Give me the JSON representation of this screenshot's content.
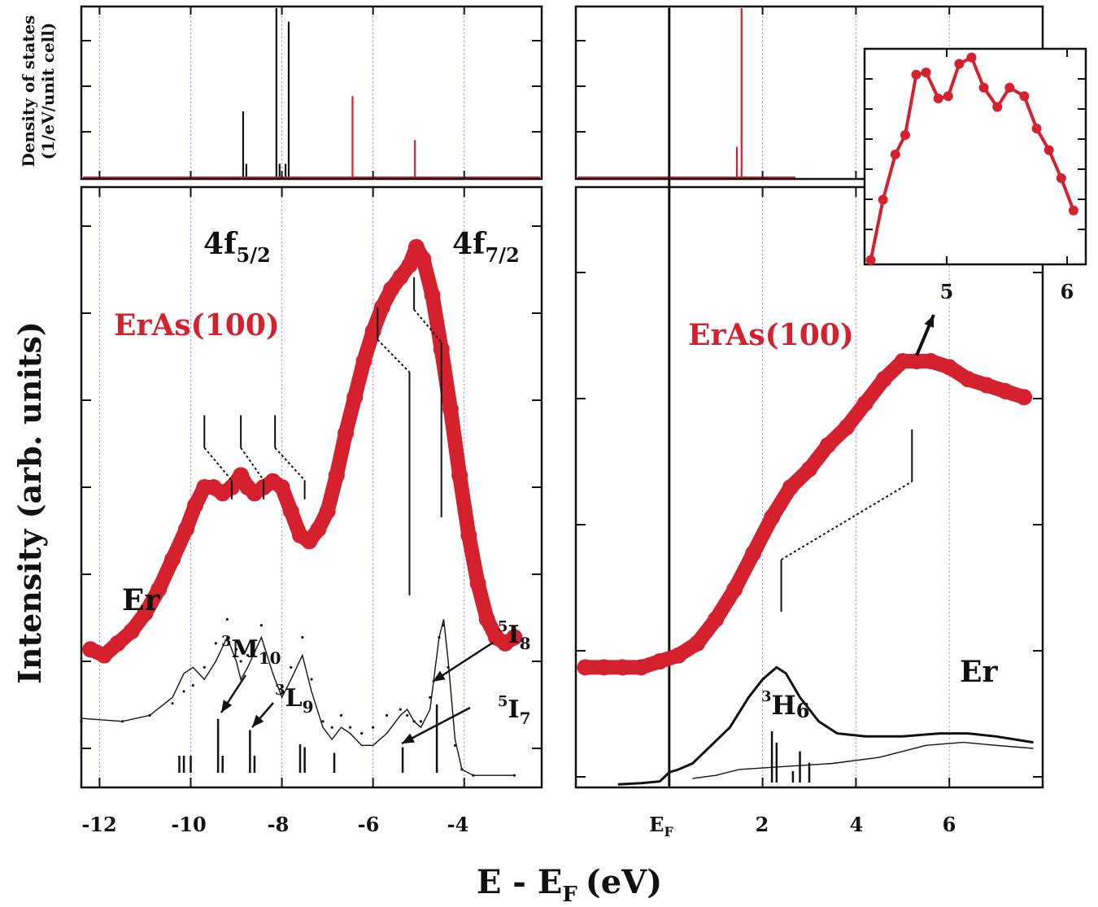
{
  "figure": {
    "x_axis_title_main": "E - E",
    "x_axis_title_sub": "F",
    "x_axis_title_unit": "(eV)",
    "y_axis_title_main": "Intensity (arb. units)",
    "y_axis_title_dos_line1": "Density of states",
    "y_axis_title_dos_line2": "(1/eV/unit cell)"
  },
  "colors": {
    "red": "#d5202e",
    "black": "#111111",
    "grid": "#8a8af0"
  },
  "left_panel": {
    "x_ticks": [
      "-12",
      "-10",
      "-8",
      "-6",
      "-4"
    ],
    "label_4f52_main": "4f",
    "label_4f52_sub": "5/2",
    "label_4f72_main": "4f",
    "label_4f72_sub": "7/2",
    "label_sample": "ErAs(100)",
    "label_er": "Er",
    "label_3M10_sup": "3",
    "label_3M10_main": "M",
    "label_3M10_sub": "10",
    "label_3L9_sup": "3",
    "label_3L9_main": "L",
    "label_3L9_sub": "9",
    "label_5I8_sup": "5",
    "label_5I8_main": "I",
    "label_5I8_sub": "8",
    "label_5I7_sup": "5",
    "label_5I7_main": "I",
    "label_5I7_sub": "7"
  },
  "right_panel": {
    "x_tick_ef_main": "E",
    "x_tick_ef_sub": "F",
    "x_ticks": [
      "2",
      "4",
      "6"
    ],
    "label_sample": "ErAs(100)",
    "label_er": "Er",
    "label_3H6_sup": "3",
    "label_3H6_main": "H",
    "label_3H6_sub": "6"
  },
  "inset": {
    "x_ticks": [
      "5",
      "6"
    ]
  },
  "chart_data": [
    {
      "type": "line",
      "panel": "left-dos",
      "xlim": [
        -12.4,
        -2.3
      ],
      "series": [
        {
          "color": "black",
          "spikes": [
            {
              "x": -8.85,
              "h": 0.39
            },
            {
              "x": -8.78,
              "h": 0.08
            },
            {
              "x": -8.12,
              "h": 1.0
            },
            {
              "x": -8.05,
              "h": 0.08
            },
            {
              "x": -7.92,
              "h": 0.08
            },
            {
              "x": -7.85,
              "h": 0.92
            }
          ]
        },
        {
          "color": "red",
          "spikes": [
            {
              "x": -6.45,
              "h": 0.48
            },
            {
              "x": -5.08,
              "h": 0.22
            }
          ]
        }
      ]
    },
    {
      "type": "line",
      "panel": "left-main",
      "xlim": [
        -12.4,
        -2.3
      ],
      "series": [
        {
          "color": "red",
          "style": "markers",
          "points": [
            [
              -12.2,
              0.23
            ],
            [
              -11.9,
              0.22
            ],
            [
              -11.6,
              0.24
            ],
            [
              -11.3,
              0.26
            ],
            [
              -11.0,
              0.29
            ],
            [
              -10.7,
              0.33
            ],
            [
              -10.4,
              0.38
            ],
            [
              -10.1,
              0.43
            ],
            [
              -9.9,
              0.47
            ],
            [
              -9.7,
              0.5
            ],
            [
              -9.5,
              0.5
            ],
            [
              -9.3,
              0.49
            ],
            [
              -9.1,
              0.5
            ],
            [
              -8.9,
              0.52
            ],
            [
              -8.75,
              0.5
            ],
            [
              -8.6,
              0.49
            ],
            [
              -8.4,
              0.5
            ],
            [
              -8.2,
              0.51
            ],
            [
              -8.0,
              0.5
            ],
            [
              -7.8,
              0.46
            ],
            [
              -7.6,
              0.42
            ],
            [
              -7.4,
              0.41
            ],
            [
              -7.2,
              0.43
            ],
            [
              -7.0,
              0.46
            ],
            [
              -6.8,
              0.52
            ],
            [
              -6.6,
              0.59
            ],
            [
              -6.4,
              0.65
            ],
            [
              -6.2,
              0.71
            ],
            [
              -6.0,
              0.76
            ],
            [
              -5.8,
              0.8
            ],
            [
              -5.6,
              0.83
            ],
            [
              -5.4,
              0.85
            ],
            [
              -5.2,
              0.87
            ],
            [
              -5.05,
              0.9
            ],
            [
              -4.9,
              0.88
            ],
            [
              -4.7,
              0.82
            ],
            [
              -4.5,
              0.73
            ],
            [
              -4.3,
              0.63
            ],
            [
              -4.1,
              0.52
            ],
            [
              -3.9,
              0.42
            ],
            [
              -3.7,
              0.34
            ],
            [
              -3.5,
              0.28
            ],
            [
              -3.3,
              0.25
            ],
            [
              -3.1,
              0.24
            ],
            [
              -2.9,
              0.25
            ]
          ]
        },
        {
          "color": "black",
          "style": "thin-line",
          "points": [
            [
              -12.4,
              0.115
            ],
            [
              -11.5,
              0.11
            ],
            [
              -10.9,
              0.12
            ],
            [
              -10.4,
              0.15
            ],
            [
              -10.15,
              0.19
            ],
            [
              -9.95,
              0.2
            ],
            [
              -9.7,
              0.18
            ],
            [
              -9.45,
              0.21
            ],
            [
              -9.2,
              0.25
            ],
            [
              -9.0,
              0.21
            ],
            [
              -8.9,
              0.18
            ],
            [
              -8.75,
              0.2
            ],
            [
              -8.45,
              0.25
            ],
            [
              -8.2,
              0.19
            ],
            [
              -8.0,
              0.15
            ],
            [
              -7.8,
              0.18
            ],
            [
              -7.55,
              0.22
            ],
            [
              -7.35,
              0.16
            ],
            [
              -7.1,
              0.1
            ],
            [
              -6.9,
              0.08
            ],
            [
              -6.7,
              0.1
            ],
            [
              -6.5,
              0.09
            ],
            [
              -6.25,
              0.07
            ],
            [
              -6.0,
              0.07
            ],
            [
              -5.7,
              0.09
            ],
            [
              -5.4,
              0.12
            ],
            [
              -5.25,
              0.13
            ],
            [
              -5.1,
              0.11
            ],
            [
              -4.95,
              0.1
            ],
            [
              -4.75,
              0.13
            ],
            [
              -4.55,
              0.25
            ],
            [
              -4.45,
              0.28
            ],
            [
              -4.35,
              0.21
            ],
            [
              -4.2,
              0.08
            ],
            [
              -4.05,
              0.03
            ],
            [
              -3.8,
              0.02
            ],
            [
              -2.9,
              0.02
            ]
          ]
        },
        {
          "color": "black",
          "style": "dots",
          "points": [
            [
              -12.4,
              0.11
            ],
            [
              -11.5,
              0.11
            ],
            [
              -10.9,
              0.12
            ],
            [
              -10.4,
              0.14
            ],
            [
              -10.15,
              0.16
            ],
            [
              -9.95,
              0.17
            ],
            [
              -9.7,
              0.2
            ],
            [
              -9.45,
              0.24
            ],
            [
              -9.2,
              0.28
            ],
            [
              -9.0,
              0.23
            ],
            [
              -8.9,
              0.21
            ],
            [
              -8.75,
              0.22
            ],
            [
              -8.45,
              0.27
            ],
            [
              -8.2,
              0.21
            ],
            [
              -8.0,
              0.17
            ],
            [
              -7.8,
              0.2
            ],
            [
              -7.55,
              0.25
            ],
            [
              -7.35,
              0.18
            ],
            [
              -7.1,
              0.11
            ],
            [
              -6.9,
              0.1
            ],
            [
              -6.7,
              0.12
            ],
            [
              -6.5,
              0.1
            ],
            [
              -6.25,
              0.09
            ],
            [
              -6.0,
              0.1
            ],
            [
              -5.7,
              0.12
            ],
            [
              -5.4,
              0.13
            ],
            [
              -5.25,
              0.12
            ],
            [
              -5.1,
              0.11
            ],
            [
              -4.95,
              0.11
            ],
            [
              -4.75,
              0.15
            ],
            [
              -4.55,
              0.25
            ],
            [
              -4.45,
              0.27
            ],
            [
              -4.35,
              0.2
            ],
            [
              -4.2,
              0.07
            ],
            [
              -4.05,
              0.03
            ],
            [
              -3.8,
              0.02
            ],
            [
              -2.9,
              0.02
            ]
          ]
        }
      ]
    },
    {
      "type": "line",
      "panel": "right-main",
      "xlim": [
        -2.0,
        8.0
      ],
      "series": [
        {
          "color": "red",
          "style": "markers",
          "points": [
            [
              -1.8,
              0.2
            ],
            [
              -1.4,
              0.2
            ],
            [
              -1.0,
              0.2
            ],
            [
              -0.6,
              0.2
            ],
            [
              -0.2,
              0.21
            ],
            [
              0.2,
              0.22
            ],
            [
              0.6,
              0.24
            ],
            [
              1.0,
              0.28
            ],
            [
              1.4,
              0.33
            ],
            [
              1.8,
              0.39
            ],
            [
              2.2,
              0.45
            ],
            [
              2.6,
              0.5
            ],
            [
              3.0,
              0.53
            ],
            [
              3.4,
              0.57
            ],
            [
              3.8,
              0.6
            ],
            [
              4.2,
              0.64
            ],
            [
              4.6,
              0.68
            ],
            [
              5.0,
              0.71
            ],
            [
              5.3,
              0.71
            ],
            [
              5.6,
              0.71
            ],
            [
              6.0,
              0.7
            ],
            [
              6.4,
              0.68
            ],
            [
              6.8,
              0.67
            ],
            [
              7.2,
              0.66
            ],
            [
              7.6,
              0.65
            ]
          ]
        },
        {
          "color": "black",
          "style": "thick-line",
          "points": [
            [
              -1.1,
              0.005
            ],
            [
              -0.6,
              0.007
            ],
            [
              -0.2,
              0.01
            ],
            [
              0.0,
              0.025
            ],
            [
              0.2,
              0.03
            ],
            [
              0.5,
              0.04
            ],
            [
              0.9,
              0.07
            ],
            [
              1.3,
              0.1
            ],
            [
              1.7,
              0.15
            ],
            [
              2.0,
              0.18
            ],
            [
              2.3,
              0.2
            ],
            [
              2.5,
              0.19
            ],
            [
              2.8,
              0.15
            ],
            [
              3.2,
              0.11
            ],
            [
              3.6,
              0.09
            ],
            [
              4.2,
              0.085
            ],
            [
              5.0,
              0.085
            ],
            [
              5.8,
              0.09
            ],
            [
              6.4,
              0.09
            ],
            [
              7.0,
              0.085
            ],
            [
              7.8,
              0.075
            ]
          ]
        },
        {
          "color": "black",
          "style": "thin-line",
          "points": [
            [
              0.5,
              0.015
            ],
            [
              1.0,
              0.02
            ],
            [
              1.5,
              0.03
            ],
            [
              2.5,
              0.035
            ],
            [
              3.5,
              0.04
            ],
            [
              4.5,
              0.05
            ],
            [
              5.5,
              0.07
            ],
            [
              6.3,
              0.075
            ],
            [
              7.0,
              0.07
            ],
            [
              7.8,
              0.065
            ]
          ]
        }
      ]
    },
    {
      "type": "line",
      "panel": "right-dos",
      "xlim": [
        -2.0,
        8.0
      ],
      "series": [
        {
          "color": "red",
          "spikes": [
            {
              "x": 1.55,
              "h": 1.0
            },
            {
              "x": 1.45,
              "h": 0.18
            }
          ]
        }
      ]
    },
    {
      "type": "line",
      "panel": "inset",
      "xlim": [
        4.4,
        6.2
      ],
      "series": [
        {
          "color": "red",
          "style": "markers-line",
          "points": [
            [
              4.45,
              0.02
            ],
            [
              4.55,
              0.3
            ],
            [
              4.65,
              0.51
            ],
            [
              4.73,
              0.6
            ],
            [
              4.82,
              0.88
            ],
            [
              4.9,
              0.89
            ],
            [
              5.0,
              0.77
            ],
            [
              5.08,
              0.78
            ],
            [
              5.17,
              0.93
            ],
            [
              5.27,
              0.96
            ],
            [
              5.37,
              0.82
            ],
            [
              5.48,
              0.73
            ],
            [
              5.58,
              0.82
            ],
            [
              5.7,
              0.78
            ],
            [
              5.8,
              0.63
            ],
            [
              5.9,
              0.53
            ],
            [
              6.0,
              0.4
            ],
            [
              6.1,
              0.25
            ]
          ]
        }
      ]
    }
  ]
}
